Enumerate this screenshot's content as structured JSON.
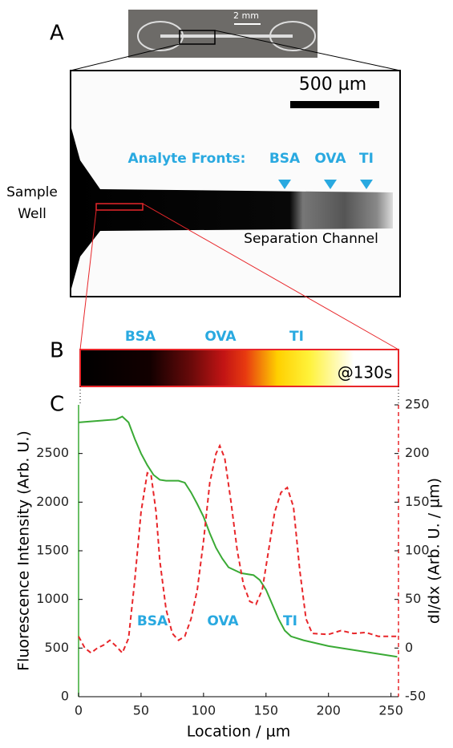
{
  "panel_a": {
    "label": "A",
    "photo_scale": "2 mm",
    "scale_bar": "500 µm",
    "analyte_fronts": "Analyte Fronts:",
    "fronts": [
      "BSA",
      "OVA",
      "TI"
    ],
    "sample_well": [
      "Sample",
      "Well"
    ],
    "channel": "Separation Channel"
  },
  "panel_b": {
    "label": "B",
    "bands": [
      "BSA",
      "OVA",
      "TI"
    ],
    "time": "@130s"
  },
  "chart_data": {
    "type": "line",
    "panel_label": "C",
    "xlabel": "Location / µm",
    "ylabel": "Fluorescence Intensity (Arb. U.)",
    "y2label": "dI/dx (Arb. U. / µm)",
    "annotations": [
      "BSA",
      "OVA",
      "TI"
    ],
    "xlim": [
      0,
      256
    ],
    "xticks": [
      0,
      50,
      100,
      150,
      200,
      250
    ],
    "ylim": [
      0,
      3000
    ],
    "yticks": [
      0,
      500,
      1000,
      1500,
      2000,
      2500
    ],
    "y2lim": [
      -50,
      250
    ],
    "y2ticks": [
      -50,
      0,
      50,
      100,
      150,
      200,
      250
    ],
    "series": [
      {
        "color": "#3aaa35",
        "dash": false,
        "x": [
          0,
          10,
          20,
          30,
          35,
          40,
          45,
          50,
          55,
          60,
          65,
          70,
          80,
          85,
          90,
          95,
          100,
          105,
          110,
          115,
          120,
          130,
          140,
          145,
          150,
          155,
          160,
          165,
          170,
          180,
          200,
          220,
          240,
          255
        ],
        "values": [
          2820,
          2830,
          2840,
          2850,
          2880,
          2820,
          2650,
          2500,
          2380,
          2280,
          2230,
          2220,
          2220,
          2200,
          2100,
          1980,
          1850,
          1680,
          1530,
          1420,
          1330,
          1270,
          1250,
          1200,
          1100,
          950,
          800,
          680,
          620,
          580,
          520,
          480,
          440,
          410
        ]
      },
      {
        "color": "#e8262a",
        "dash": true,
        "axis": "y2",
        "x": [
          0,
          5,
          10,
          15,
          20,
          25,
          30,
          35,
          40,
          45,
          50,
          55,
          58,
          62,
          65,
          70,
          75,
          80,
          85,
          90,
          95,
          100,
          105,
          110,
          113,
          117,
          122,
          127,
          132,
          137,
          142,
          147,
          152,
          157,
          162,
          167,
          172,
          177,
          182,
          187,
          200,
          210,
          220,
          230,
          240,
          255
        ],
        "values": [
          12,
          0,
          -5,
          0,
          3,
          8,
          2,
          -5,
          10,
          70,
          140,
          180,
          178,
          140,
          90,
          40,
          15,
          8,
          12,
          30,
          60,
          110,
          170,
          200,
          208,
          195,
          150,
          100,
          65,
          48,
          45,
          60,
          100,
          140,
          160,
          165,
          145,
          80,
          30,
          15,
          14,
          18,
          15,
          16,
          12,
          12
        ]
      }
    ]
  }
}
